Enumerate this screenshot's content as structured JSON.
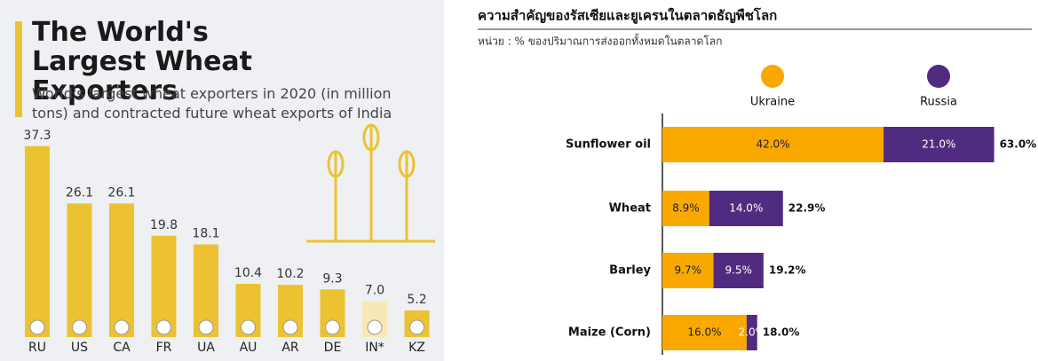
{
  "chart_data": [
    {
      "type": "bar",
      "title": "The World's Largest Wheat Exporters",
      "subtitle": "World's largest wheat exporters in 2020 (in million tons) and contracted future wheat exports of India",
      "categories": [
        "RU",
        "US",
        "CA",
        "FR",
        "UA",
        "AU",
        "AR",
        "DE",
        "IN*",
        "KZ"
      ],
      "values": [
        37.3,
        26.1,
        26.1,
        19.8,
        18.1,
        10.4,
        10.2,
        9.3,
        7.0,
        5.2
      ],
      "value_labels": [
        "37.3",
        "26.1",
        "26.1",
        "19.8",
        "18.1",
        "10.4",
        "10.2",
        "9.3",
        "7.0",
        "5.2"
      ],
      "colors": [
        "#ecc232",
        "#ecc232",
        "#ecc232",
        "#ecc232",
        "#ecc232",
        "#ecc232",
        "#ecc232",
        "#ecc232",
        "#f8e8b5",
        "#ecc232"
      ]
    },
    {
      "type": "stacked-hbar",
      "title": "ความสำคัญของรัสเซียและยูเครนในตลาดธัญพืชโลก",
      "subtitle": "หน่วย : % ของปริมาณการส่งออกทั้งหมดในตลาดโลก",
      "categories": [
        "Sunflower oil",
        "Wheat",
        "Barley",
        "Maize (Corn)"
      ],
      "series": [
        {
          "name": "Ukraine",
          "color": "#f9a800",
          "values": [
            42.0,
            8.9,
            9.7,
            16.0
          ],
          "value_labels": [
            "42.0%",
            "8.9%",
            "9.7%",
            "16.0%"
          ]
        },
        {
          "name": "Russia",
          "color": "#512b80",
          "values": [
            21.0,
            14.0,
            9.5,
            2.0
          ],
          "value_labels": [
            "21.0%",
            "14.0%",
            "9.5%",
            "2.0%"
          ]
        }
      ],
      "totals": [
        63.0,
        22.9,
        19.2,
        18.0
      ],
      "total_labels": [
        "63.0%",
        "22.9%",
        "19.2%",
        "18.0%"
      ]
    }
  ]
}
